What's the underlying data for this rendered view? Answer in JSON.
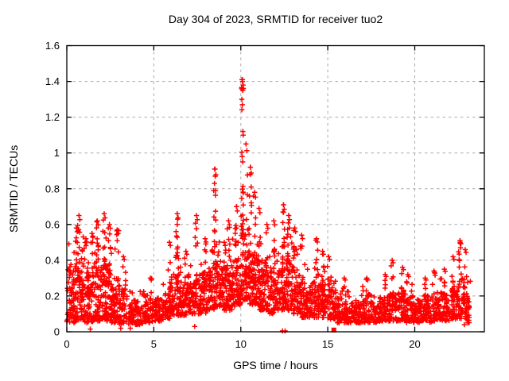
{
  "chart": {
    "title": "Day 304 of 2023, SRMTID for receiver tuo2",
    "xlabel": "GPS time / hours",
    "ylabel": "SRMTID / TECUs"
  },
  "chart_data": {
    "type": "scatter",
    "title": "Day 304 of 2023, SRMTID for receiver tuo2",
    "xlabel": "GPS time / hours",
    "ylabel": "SRMTID / TECUs",
    "marker": "plus",
    "marker_color": "#ff0000",
    "background_color": "#ffffff",
    "grid": true,
    "grid_color": "#aaaaaa",
    "axis_color": "#000000",
    "x_axis": {
      "range": [
        0,
        24
      ],
      "ticks": [
        0,
        5,
        10,
        15,
        20
      ],
      "tick_labels": [
        "0",
        "5",
        "10",
        "15",
        "20"
      ]
    },
    "y_axis": {
      "range": [
        0,
        1.6
      ],
      "ticks": [
        0,
        0.2,
        0.4,
        0.6,
        0.8,
        1.0,
        1.2,
        1.4,
        1.6
      ],
      "tick_labels": [
        "0",
        "0.2",
        "0.4",
        "0.6",
        "0.8",
        "1",
        "1.2",
        "1.4",
        "1.6"
      ]
    },
    "data_extent_hours": [
      0,
      23.2
    ],
    "description": "Dense band of SRMTID values ~0.05-0.4 TECU all day; quiet 03-06h and 15.5-21h; activity peaks near 10.1h reaching 1.41 TECU; secondary peaks 8.5h (0.91), 12.45h (0.71), 2.15h and 6.35h (0.66), 22.6h (0.51).",
    "band_bins": [
      [
        0,
        0.5,
        70,
        0.05,
        0.35
      ],
      [
        0.5,
        1,
        70,
        0.06,
        0.38
      ],
      [
        1,
        1.5,
        68,
        0.05,
        0.33
      ],
      [
        1.5,
        2,
        70,
        0.06,
        0.36
      ],
      [
        2,
        2.5,
        70,
        0.06,
        0.38
      ],
      [
        2.5,
        3,
        66,
        0.05,
        0.33
      ],
      [
        3,
        3.5,
        50,
        0.04,
        0.24
      ],
      [
        3.5,
        4,
        44,
        0.04,
        0.18
      ],
      [
        4,
        4.5,
        44,
        0.04,
        0.17
      ],
      [
        4.5,
        5,
        44,
        0.05,
        0.18
      ],
      [
        5,
        5.5,
        46,
        0.06,
        0.19
      ],
      [
        5.5,
        6,
        52,
        0.07,
        0.25
      ],
      [
        6,
        6.5,
        55,
        0.09,
        0.32
      ],
      [
        6.5,
        7,
        54,
        0.09,
        0.28
      ],
      [
        7,
        7.5,
        55,
        0.1,
        0.3
      ],
      [
        7.5,
        8,
        58,
        0.1,
        0.33
      ],
      [
        8,
        8.5,
        62,
        0.12,
        0.36
      ],
      [
        8.5,
        9,
        64,
        0.13,
        0.38
      ],
      [
        9,
        9.5,
        62,
        0.12,
        0.36
      ],
      [
        9.5,
        10,
        66,
        0.14,
        0.42
      ],
      [
        10,
        10.5,
        68,
        0.18,
        0.48
      ],
      [
        10.5,
        11,
        64,
        0.15,
        0.44
      ],
      [
        11,
        11.5,
        62,
        0.12,
        0.4
      ],
      [
        11.5,
        12,
        60,
        0.1,
        0.34
      ],
      [
        12,
        12.5,
        62,
        0.12,
        0.38
      ],
      [
        12.5,
        13,
        64,
        0.12,
        0.4
      ],
      [
        13,
        13.5,
        60,
        0.1,
        0.36
      ],
      [
        13.5,
        14,
        55,
        0.08,
        0.28
      ],
      [
        14,
        14.5,
        55,
        0.08,
        0.28
      ],
      [
        14.5,
        15,
        54,
        0.08,
        0.27
      ],
      [
        15,
        15.5,
        52,
        0.07,
        0.25
      ],
      [
        15.5,
        16,
        48,
        0.05,
        0.19
      ],
      [
        16,
        16.5,
        48,
        0.05,
        0.18
      ],
      [
        16.5,
        17,
        48,
        0.05,
        0.17
      ],
      [
        17,
        17.5,
        48,
        0.05,
        0.19
      ],
      [
        17.5,
        18,
        46,
        0.05,
        0.17
      ],
      [
        18,
        18.5,
        48,
        0.06,
        0.2
      ],
      [
        18.5,
        19,
        52,
        0.06,
        0.22
      ],
      [
        19,
        19.5,
        52,
        0.06,
        0.22
      ],
      [
        19.5,
        20,
        48,
        0.05,
        0.2
      ],
      [
        20,
        20.5,
        48,
        0.05,
        0.18
      ],
      [
        20.5,
        21,
        48,
        0.05,
        0.2
      ],
      [
        21,
        21.5,
        50,
        0.06,
        0.22
      ],
      [
        21.5,
        22,
        50,
        0.06,
        0.22
      ],
      [
        22,
        22.5,
        48,
        0.07,
        0.26
      ],
      [
        22.5,
        23,
        46,
        0.07,
        0.3
      ],
      [
        23,
        23.2,
        18,
        0.05,
        0.22
      ]
    ],
    "spikes": [
      [
        0.55,
        0.58,
        8
      ],
      [
        0.7,
        0.65,
        10
      ],
      [
        1.1,
        0.52,
        6
      ],
      [
        1.45,
        0.55,
        6
      ],
      [
        1.75,
        0.62,
        8
      ],
      [
        2.15,
        0.66,
        10
      ],
      [
        2.45,
        0.6,
        7
      ],
      [
        2.9,
        0.57,
        6
      ],
      [
        3.25,
        0.42,
        4
      ],
      [
        4.8,
        0.3,
        3
      ],
      [
        5.9,
        0.5,
        4
      ],
      [
        6.35,
        0.66,
        10
      ],
      [
        6.85,
        0.45,
        4
      ],
      [
        7.45,
        0.65,
        8
      ],
      [
        7.95,
        0.52,
        6
      ],
      [
        8.52,
        0.91,
        12
      ],
      [
        9.05,
        0.5,
        4
      ],
      [
        9.3,
        0.62,
        6
      ],
      [
        9.75,
        0.7,
        8
      ],
      [
        10.1,
        1.41,
        20
      ],
      [
        10.3,
        1.05,
        8
      ],
      [
        10.55,
        0.92,
        10
      ],
      [
        10.8,
        0.78,
        6
      ],
      [
        11.05,
        0.69,
        8
      ],
      [
        11.5,
        0.6,
        6
      ],
      [
        11.9,
        0.62,
        6
      ],
      [
        12.45,
        0.71,
        10
      ],
      [
        12.75,
        0.65,
        8
      ],
      [
        13.1,
        0.58,
        6
      ],
      [
        13.5,
        0.54,
        6
      ],
      [
        14.35,
        0.52,
        6
      ],
      [
        14.7,
        0.45,
        4
      ],
      [
        15.05,
        0.42,
        4
      ],
      [
        15.95,
        0.3,
        3
      ],
      [
        17.25,
        0.3,
        3
      ],
      [
        18.3,
        0.32,
        3
      ],
      [
        18.7,
        0.4,
        6
      ],
      [
        19.3,
        0.36,
        4
      ],
      [
        19.6,
        0.32,
        3
      ],
      [
        20.6,
        0.3,
        3
      ],
      [
        21.1,
        0.34,
        3
      ],
      [
        21.7,
        0.35,
        3
      ],
      [
        22.2,
        0.42,
        4
      ],
      [
        22.6,
        0.51,
        6
      ],
      [
        22.9,
        0.46,
        4
      ]
    ],
    "peak_points": [
      [
        10.07,
        1.41
      ],
      [
        10.1,
        1.4
      ],
      [
        10.13,
        1.38
      ],
      [
        10.06,
        1.3
      ],
      [
        10.09,
        1.27
      ],
      [
        10.12,
        1.12
      ],
      [
        10.14,
        1.1
      ],
      [
        10.08,
        0.98
      ],
      [
        10.11,
        0.95
      ],
      [
        8.5,
        0.91
      ],
      [
        8.53,
        0.87
      ],
      [
        8.49,
        0.83
      ],
      [
        8.55,
        0.79
      ],
      [
        9.76,
        0.7
      ],
      [
        10.56,
        0.92
      ],
      [
        10.54,
        0.88
      ],
      [
        12.46,
        0.71
      ],
      [
        12.43,
        0.67
      ],
      [
        6.35,
        0.66
      ],
      [
        6.37,
        0.63
      ],
      [
        2.15,
        0.66
      ],
      [
        0.7,
        0.65
      ],
      [
        22.6,
        0.51
      ],
      [
        22.63,
        0.47
      ],
      [
        11.05,
        0.69
      ],
      [
        12.76,
        0.65
      ]
    ],
    "low_outliers": [
      [
        1.35,
        0.015
      ],
      [
        3.1,
        0.02
      ],
      [
        3.65,
        0.02
      ],
      [
        7.35,
        0.03
      ],
      [
        12.4,
        0.005
      ],
      [
        12.55,
        0.005
      ],
      [
        22.85,
        0.04
      ],
      [
        23.05,
        0.05
      ]
    ],
    "square_marker": [
      15.35,
      0.01
    ],
    "seed": 7
  }
}
